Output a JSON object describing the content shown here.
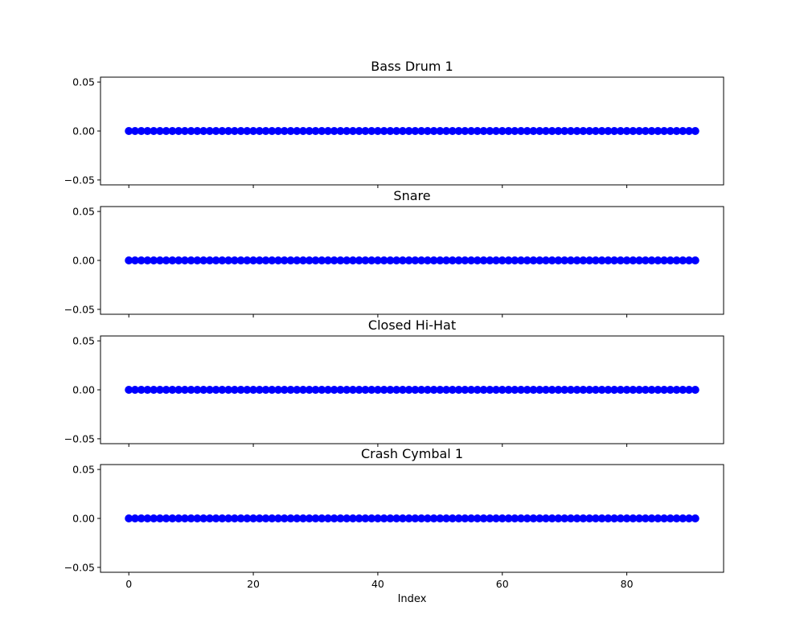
{
  "chart_data": [
    {
      "type": "scatter",
      "title": "Bass Drum 1",
      "x": [
        0,
        1,
        2,
        3,
        4,
        5,
        6,
        7,
        8,
        9,
        10,
        11,
        12,
        13,
        14,
        15,
        16,
        17,
        18,
        19,
        20,
        21,
        22,
        23,
        24,
        25,
        26,
        27,
        28,
        29,
        30,
        31,
        32,
        33,
        34,
        35,
        36,
        37,
        38,
        39,
        40,
        41,
        42,
        43,
        44,
        45,
        46,
        47,
        48,
        49,
        50,
        51,
        52,
        53,
        54,
        55,
        56,
        57,
        58,
        59,
        60,
        61,
        62,
        63,
        64,
        65,
        66,
        67,
        68,
        69,
        70,
        71,
        72,
        73,
        74,
        75,
        76,
        77,
        78,
        79,
        80,
        81,
        82,
        83,
        84,
        85,
        86,
        87,
        88,
        89,
        90,
        91
      ],
      "y": [
        0,
        0,
        0,
        0,
        0,
        0,
        0,
        0,
        0,
        0,
        0,
        0,
        0,
        0,
        0,
        0,
        0,
        0,
        0,
        0,
        0,
        0,
        0,
        0,
        0,
        0,
        0,
        0,
        0,
        0,
        0,
        0,
        0,
        0,
        0,
        0,
        0,
        0,
        0,
        0,
        0,
        0,
        0,
        0,
        0,
        0,
        0,
        0,
        0,
        0,
        0,
        0,
        0,
        0,
        0,
        0,
        0,
        0,
        0,
        0,
        0,
        0,
        0,
        0,
        0,
        0,
        0,
        0,
        0,
        0,
        0,
        0,
        0,
        0,
        0,
        0,
        0,
        0,
        0,
        0,
        0,
        0,
        0,
        0,
        0,
        0,
        0,
        0,
        0,
        0,
        0,
        0
      ],
      "xlabel": "",
      "ylabel": "",
      "xlim": [
        -4.55,
        95.55
      ],
      "ylim": [
        -0.055,
        0.055
      ],
      "xticks": [
        "0",
        "20",
        "40",
        "60",
        "80"
      ],
      "yticks": [
        "0.05",
        "0.00",
        "−0.05"
      ],
      "grid": false,
      "marker_color": "#0000ff"
    },
    {
      "type": "scatter",
      "title": "Snare",
      "x": [
        0,
        1,
        2,
        3,
        4,
        5,
        6,
        7,
        8,
        9,
        10,
        11,
        12,
        13,
        14,
        15,
        16,
        17,
        18,
        19,
        20,
        21,
        22,
        23,
        24,
        25,
        26,
        27,
        28,
        29,
        30,
        31,
        32,
        33,
        34,
        35,
        36,
        37,
        38,
        39,
        40,
        41,
        42,
        43,
        44,
        45,
        46,
        47,
        48,
        49,
        50,
        51,
        52,
        53,
        54,
        55,
        56,
        57,
        58,
        59,
        60,
        61,
        62,
        63,
        64,
        65,
        66,
        67,
        68,
        69,
        70,
        71,
        72,
        73,
        74,
        75,
        76,
        77,
        78,
        79,
        80,
        81,
        82,
        83,
        84,
        85,
        86,
        87,
        88,
        89,
        90,
        91
      ],
      "y": [
        0,
        0,
        0,
        0,
        0,
        0,
        0,
        0,
        0,
        0,
        0,
        0,
        0,
        0,
        0,
        0,
        0,
        0,
        0,
        0,
        0,
        0,
        0,
        0,
        0,
        0,
        0,
        0,
        0,
        0,
        0,
        0,
        0,
        0,
        0,
        0,
        0,
        0,
        0,
        0,
        0,
        0,
        0,
        0,
        0,
        0,
        0,
        0,
        0,
        0,
        0,
        0,
        0,
        0,
        0,
        0,
        0,
        0,
        0,
        0,
        0,
        0,
        0,
        0,
        0,
        0,
        0,
        0,
        0,
        0,
        0,
        0,
        0,
        0,
        0,
        0,
        0,
        0,
        0,
        0,
        0,
        0,
        0,
        0,
        0,
        0,
        0,
        0,
        0,
        0,
        0,
        0
      ],
      "xlabel": "",
      "ylabel": "",
      "xlim": [
        -4.55,
        95.55
      ],
      "ylim": [
        -0.055,
        0.055
      ],
      "xticks": [
        "0",
        "20",
        "40",
        "60",
        "80"
      ],
      "yticks": [
        "0.05",
        "0.00",
        "−0.05"
      ],
      "grid": false,
      "marker_color": "#0000ff"
    },
    {
      "type": "scatter",
      "title": "Closed Hi-Hat",
      "x": [
        0,
        1,
        2,
        3,
        4,
        5,
        6,
        7,
        8,
        9,
        10,
        11,
        12,
        13,
        14,
        15,
        16,
        17,
        18,
        19,
        20,
        21,
        22,
        23,
        24,
        25,
        26,
        27,
        28,
        29,
        30,
        31,
        32,
        33,
        34,
        35,
        36,
        37,
        38,
        39,
        40,
        41,
        42,
        43,
        44,
        45,
        46,
        47,
        48,
        49,
        50,
        51,
        52,
        53,
        54,
        55,
        56,
        57,
        58,
        59,
        60,
        61,
        62,
        63,
        64,
        65,
        66,
        67,
        68,
        69,
        70,
        71,
        72,
        73,
        74,
        75,
        76,
        77,
        78,
        79,
        80,
        81,
        82,
        83,
        84,
        85,
        86,
        87,
        88,
        89,
        90,
        91
      ],
      "y": [
        0,
        0,
        0,
        0,
        0,
        0,
        0,
        0,
        0,
        0,
        0,
        0,
        0,
        0,
        0,
        0,
        0,
        0,
        0,
        0,
        0,
        0,
        0,
        0,
        0,
        0,
        0,
        0,
        0,
        0,
        0,
        0,
        0,
        0,
        0,
        0,
        0,
        0,
        0,
        0,
        0,
        0,
        0,
        0,
        0,
        0,
        0,
        0,
        0,
        0,
        0,
        0,
        0,
        0,
        0,
        0,
        0,
        0,
        0,
        0,
        0,
        0,
        0,
        0,
        0,
        0,
        0,
        0,
        0,
        0,
        0,
        0,
        0,
        0,
        0,
        0,
        0,
        0,
        0,
        0,
        0,
        0,
        0,
        0,
        0,
        0,
        0,
        0,
        0,
        0,
        0,
        0
      ],
      "xlabel": "",
      "ylabel": "",
      "xlim": [
        -4.55,
        95.55
      ],
      "ylim": [
        -0.055,
        0.055
      ],
      "xticks": [
        "0",
        "20",
        "40",
        "60",
        "80"
      ],
      "yticks": [
        "0.05",
        "0.00",
        "−0.05"
      ],
      "grid": false,
      "marker_color": "#0000ff"
    },
    {
      "type": "scatter",
      "title": "Crash Cymbal 1",
      "x": [
        0,
        1,
        2,
        3,
        4,
        5,
        6,
        7,
        8,
        9,
        10,
        11,
        12,
        13,
        14,
        15,
        16,
        17,
        18,
        19,
        20,
        21,
        22,
        23,
        24,
        25,
        26,
        27,
        28,
        29,
        30,
        31,
        32,
        33,
        34,
        35,
        36,
        37,
        38,
        39,
        40,
        41,
        42,
        43,
        44,
        45,
        46,
        47,
        48,
        49,
        50,
        51,
        52,
        53,
        54,
        55,
        56,
        57,
        58,
        59,
        60,
        61,
        62,
        63,
        64,
        65,
        66,
        67,
        68,
        69,
        70,
        71,
        72,
        73,
        74,
        75,
        76,
        77,
        78,
        79,
        80,
        81,
        82,
        83,
        84,
        85,
        86,
        87,
        88,
        89,
        90,
        91
      ],
      "y": [
        0,
        0,
        0,
        0,
        0,
        0,
        0,
        0,
        0,
        0,
        0,
        0,
        0,
        0,
        0,
        0,
        0,
        0,
        0,
        0,
        0,
        0,
        0,
        0,
        0,
        0,
        0,
        0,
        0,
        0,
        0,
        0,
        0,
        0,
        0,
        0,
        0,
        0,
        0,
        0,
        0,
        0,
        0,
        0,
        0,
        0,
        0,
        0,
        0,
        0,
        0,
        0,
        0,
        0,
        0,
        0,
        0,
        0,
        0,
        0,
        0,
        0,
        0,
        0,
        0,
        0,
        0,
        0,
        0,
        0,
        0,
        0,
        0,
        0,
        0,
        0,
        0,
        0,
        0,
        0,
        0,
        0,
        0,
        0,
        0,
        0,
        0,
        0,
        0,
        0,
        0,
        0
      ],
      "xlabel": "Index",
      "ylabel": "",
      "xlim": [
        -4.55,
        95.55
      ],
      "ylim": [
        -0.055,
        0.055
      ],
      "xticks": [
        "0",
        "20",
        "40",
        "60",
        "80"
      ],
      "yticks": [
        "0.05",
        "0.00",
        "−0.05"
      ],
      "grid": false,
      "marker_color": "#0000ff"
    }
  ]
}
